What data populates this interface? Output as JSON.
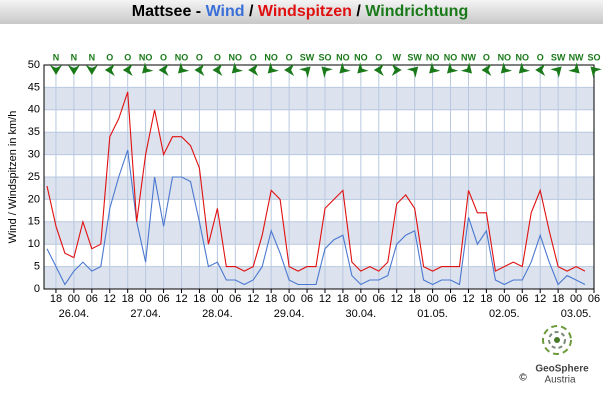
{
  "chart_data": {
    "type": "line",
    "title": [
      {
        "text": "Mattsee",
        "color": "#000000"
      },
      {
        "text": " - ",
        "color": "#000000"
      },
      {
        "text": "Wind",
        "color": "#3a6fd8"
      },
      {
        "text": " / ",
        "color": "#000000"
      },
      {
        "text": "Windspitzen",
        "color": "#e01010"
      },
      {
        "text": " / ",
        "color": "#000000"
      },
      {
        "text": "Windrichtung",
        "color": "#1a7a1a"
      }
    ],
    "y_label": "Wind / Windspitzen in km/h",
    "x": [
      -9,
      -6,
      -3,
      0,
      3,
      6,
      9,
      12,
      15,
      18,
      21,
      24,
      27,
      30,
      33,
      36,
      39,
      42,
      45,
      48,
      51,
      54,
      57,
      60,
      63,
      66,
      69,
      72,
      75,
      78,
      81,
      84,
      87,
      90,
      93,
      96,
      99,
      102,
      105,
      108,
      111,
      114,
      117,
      120,
      123,
      126,
      129,
      132,
      135,
      138,
      141,
      144,
      147,
      150,
      153,
      156,
      159,
      162,
      165,
      168,
      171,
      174
    ],
    "series": [
      {
        "name": "Windspitzen",
        "color": "#e01010",
        "values": [
          23,
          14,
          8,
          7,
          15,
          9,
          10,
          34,
          38,
          44,
          15,
          30,
          40,
          30,
          34,
          34,
          32,
          27,
          10,
          18,
          5,
          5,
          4,
          5,
          12,
          22,
          20,
          5,
          4,
          5,
          5,
          18,
          20,
          22,
          6,
          4,
          5,
          4,
          6,
          19,
          21,
          18,
          5,
          4,
          5,
          5,
          5,
          22,
          17,
          17,
          4,
          5,
          6,
          5,
          17,
          22,
          13,
          5,
          4,
          5,
          4,
          null
        ]
      },
      {
        "name": "Wind",
        "color": "#4a78d0",
        "values": [
          9,
          5,
          1,
          4,
          6,
          4,
          5,
          18,
          25,
          31,
          15,
          6,
          25,
          14,
          25,
          25,
          24,
          15,
          5,
          6,
          2,
          2,
          1,
          2,
          5,
          13,
          8,
          2,
          1,
          1,
          1,
          9,
          11,
          12,
          3,
          1,
          2,
          2,
          3,
          10,
          12,
          13,
          2,
          1,
          2,
          2,
          1,
          16,
          10,
          13,
          2,
          1,
          2,
          2,
          6,
          12,
          6,
          1,
          3,
          2,
          1,
          null
        ]
      }
    ],
    "xlim": [
      -10,
      174
    ],
    "xticks": [
      {
        "value": -6,
        "label": "18"
      },
      {
        "value": 0,
        "label": "00"
      },
      {
        "value": 6,
        "label": "06"
      },
      {
        "value": 12,
        "label": "12"
      },
      {
        "value": 18,
        "label": "18"
      },
      {
        "value": 24,
        "label": "00"
      },
      {
        "value": 30,
        "label": "06"
      },
      {
        "value": 36,
        "label": "12"
      },
      {
        "value": 42,
        "label": "18"
      },
      {
        "value": 48,
        "label": "00"
      },
      {
        "value": 54,
        "label": "06"
      },
      {
        "value": 60,
        "label": "12"
      },
      {
        "value": 66,
        "label": "18"
      },
      {
        "value": 72,
        "label": "00"
      },
      {
        "value": 78,
        "label": "06"
      },
      {
        "value": 84,
        "label": "12"
      },
      {
        "value": 90,
        "label": "18"
      },
      {
        "value": 96,
        "label": "00"
      },
      {
        "value": 102,
        "label": "06"
      },
      {
        "value": 108,
        "label": "12"
      },
      {
        "value": 114,
        "label": "18"
      },
      {
        "value": 120,
        "label": "00"
      },
      {
        "value": 126,
        "label": "06"
      },
      {
        "value": 132,
        "label": "12"
      },
      {
        "value": 138,
        "label": "18"
      },
      {
        "value": 144,
        "label": "00"
      },
      {
        "value": 150,
        "label": "06"
      },
      {
        "value": 156,
        "label": "12"
      },
      {
        "value": 162,
        "label": "18"
      },
      {
        "value": 168,
        "label": "00"
      },
      {
        "value": 174,
        "label": "06"
      }
    ],
    "day_labels": [
      {
        "value": 0,
        "label": "26.04."
      },
      {
        "value": 24,
        "label": "27.04."
      },
      {
        "value": 48,
        "label": "28.04."
      },
      {
        "value": 72,
        "label": "29.04."
      },
      {
        "value": 96,
        "label": "30.04."
      },
      {
        "value": 120,
        "label": "01.05."
      },
      {
        "value": 144,
        "label": "02.05."
      },
      {
        "value": 168,
        "label": "03.05."
      }
    ],
    "ylim": [
      0,
      50
    ],
    "yticks": [
      0,
      5,
      10,
      15,
      20,
      25,
      30,
      35,
      40,
      45,
      50
    ],
    "grid": true,
    "banded": true,
    "direction": {
      "color": "#1a7a1a",
      "x": [
        -6,
        0,
        6,
        12,
        18,
        24,
        30,
        36,
        42,
        48,
        54,
        60,
        66,
        72,
        78,
        84,
        90,
        96,
        102,
        108,
        114,
        120,
        126,
        132,
        138,
        144,
        150,
        156,
        162,
        168,
        174
      ],
      "labels": [
        "N",
        "N",
        "N",
        "O",
        "O",
        "NO",
        "O",
        "NO",
        "O",
        "O",
        "NO",
        "O",
        "NO",
        "O",
        "SW",
        "SO",
        "NO",
        "NO",
        "O",
        "W",
        "SW",
        "NO",
        "NO",
        "NW",
        "O",
        "NO",
        "NO",
        "O",
        "SW",
        "NW",
        "SO"
      ]
    },
    "logo": {
      "name": "GeoSphere",
      "sub": "Austria",
      "copyright": "©"
    }
  }
}
